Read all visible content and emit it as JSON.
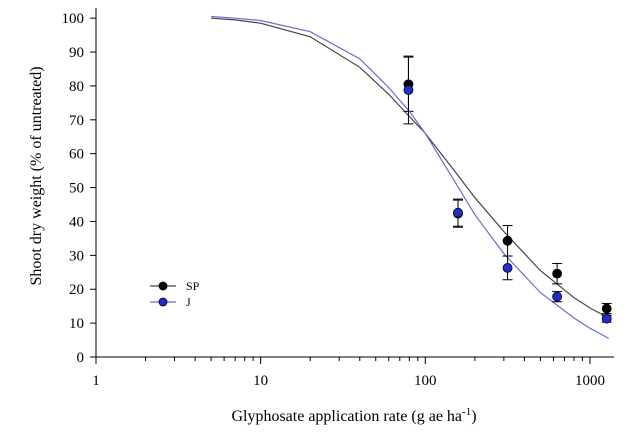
{
  "chart_data": {
    "type": "scatter",
    "xscale": "log",
    "xlim": [
      1,
      1400
    ],
    "ylim": [
      0,
      103
    ],
    "xticks": [
      1,
      10,
      100,
      1000
    ],
    "xtick_labels": [
      "1",
      "10",
      "100",
      "1000"
    ],
    "yticks": [
      0,
      10,
      20,
      30,
      40,
      50,
      60,
      70,
      80,
      90,
      100
    ],
    "ytick_labels": [
      "0",
      "10",
      "20",
      "30",
      "40",
      "50",
      "60",
      "70",
      "80",
      "90",
      "100"
    ],
    "xlabel_main": "Glyphosate application rate (g ae ha",
    "xlabel_sup": "-1",
    "xlabel_end": ")",
    "ylabel": "Shoot dry weight (% of untreated)",
    "grid": false,
    "legend_position": "lower-left",
    "series": [
      {
        "name": "SP",
        "color": "#000000",
        "x": [
          79,
          158,
          316,
          632,
          1264
        ],
        "y": [
          80.5,
          42.3,
          34.3,
          24.6,
          14.3
        ],
        "err": [
          8,
          4,
          4.5,
          3,
          1.5
        ],
        "fit_curve": {
          "x": [
            5,
            7,
            10,
            20,
            40,
            60,
            80,
            100,
            150,
            200,
            300,
            500,
            800,
            1000,
            1300
          ],
          "y": [
            100,
            99.5,
            98.5,
            94.5,
            85.5,
            77.5,
            71,
            66,
            55,
            47,
            37,
            25.5,
            17.5,
            14.5,
            11.5
          ]
        }
      },
      {
        "name": "J",
        "color": "#1f2ecc",
        "x": [
          79,
          158,
          316,
          632,
          1264
        ],
        "y": [
          78.8,
          42.6,
          26.3,
          17.8,
          11.3
        ],
        "err": [
          10,
          4,
          3.5,
          1.5,
          1
        ],
        "fit_curve": {
          "x": [
            5,
            7,
            10,
            20,
            40,
            60,
            80,
            100,
            150,
            200,
            300,
            500,
            800,
            1000,
            1300
          ],
          "y": [
            100.5,
            100,
            99.3,
            96,
            88,
            79.5,
            72.5,
            66,
            52,
            42,
            30.5,
            19,
            11.5,
            8.5,
            5.5
          ]
        }
      }
    ]
  }
}
